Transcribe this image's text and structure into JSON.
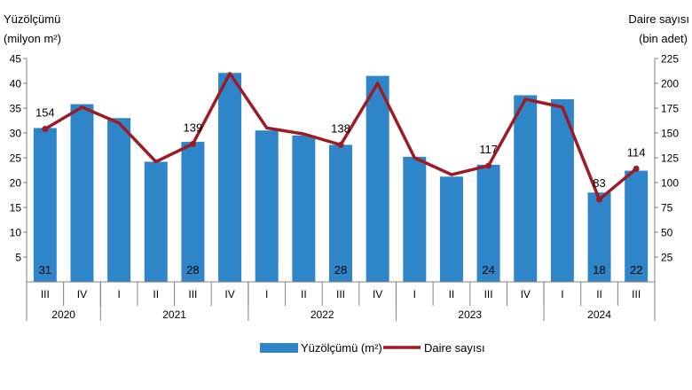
{
  "chart_data": {
    "type": "bar",
    "y_left_label_line1": "Yüzölçümü",
    "y_left_label_line2": "(milyon m²)",
    "y_right_label_line1": "Daire sayısı",
    "y_right_label_line2": "(bin adet)",
    "ylim_left": [
      0,
      45
    ],
    "ylim_right": [
      0,
      225
    ],
    "yticks_left": [
      5,
      10,
      15,
      20,
      25,
      30,
      35,
      40,
      45
    ],
    "yticks_right": [
      25,
      50,
      75,
      100,
      125,
      150,
      175,
      200,
      225
    ],
    "grid": false,
    "legend_position": "bottom-center",
    "categories": [
      "III",
      "IV",
      "I",
      "II",
      "III",
      "IV",
      "I",
      "II",
      "III",
      "IV",
      "I",
      "II",
      "III",
      "IV",
      "I",
      "II",
      "III"
    ],
    "years": [
      {
        "label": "2020",
        "quarters": 2
      },
      {
        "label": "2021",
        "quarters": 4
      },
      {
        "label": "2022",
        "quarters": 4
      },
      {
        "label": "2023",
        "quarters": 4
      },
      {
        "label": "2024",
        "quarters": 3
      }
    ],
    "series": [
      {
        "name": "Yüzölçümü (m²)",
        "axis": "left",
        "kind": "bar",
        "color": "#2e86c8",
        "values": [
          31,
          35.8,
          33,
          24.2,
          28.2,
          42.1,
          30.5,
          29.5,
          27.6,
          41.5,
          25.2,
          21.2,
          23.6,
          37.6,
          36.8,
          18,
          22.4
        ],
        "labels": [
          "31",
          "",
          "",
          "",
          "28",
          "",
          "",
          "",
          "28",
          "",
          "",
          "",
          "24",
          "",
          "",
          "18",
          "22"
        ]
      },
      {
        "name": "Daire sayısı",
        "axis": "right",
        "kind": "line",
        "color": "#9b1c24",
        "values": [
          154,
          176,
          160,
          121,
          139,
          210,
          155,
          149,
          138,
          200,
          125,
          108,
          117,
          184,
          176,
          83,
          114
        ],
        "labels": [
          "154",
          "",
          "",
          "",
          "139",
          "",
          "",
          "",
          "138",
          "",
          "",
          "",
          "117",
          "",
          "",
          "83",
          "114"
        ]
      }
    ]
  }
}
